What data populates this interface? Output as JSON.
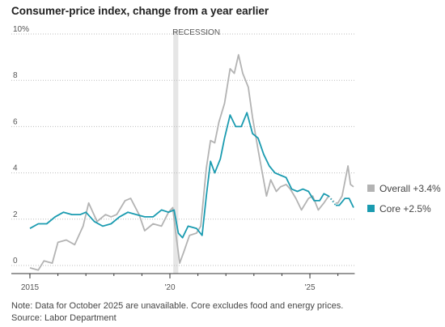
{
  "chart_data": {
    "type": "line",
    "title": "Consumer-price index, change from a year earlier",
    "xlim": [
      2014.9,
      2026.6
    ],
    "xticks": [
      {
        "value": 2015,
        "label": "2015"
      },
      {
        "value": 2020,
        "label": "'20"
      },
      {
        "value": 2025,
        "label": "'25"
      }
    ],
    "ylim": [
      -0.35,
      10
    ],
    "yticks": [
      0,
      2,
      4,
      6,
      8,
      {
        "value": 10,
        "label": "10%"
      }
    ],
    "grid": true,
    "shaded_region": {
      "label": "RECESSION",
      "xlim": [
        2020.12,
        2020.3
      ]
    },
    "series": [
      {
        "name": "Overall +3.4%",
        "color": "#b3b3b3",
        "x": [
          2015.0,
          2015.3,
          2015.5,
          2015.8,
          2016.0,
          2016.3,
          2016.6,
          2016.9,
          2017.1,
          2017.4,
          2017.7,
          2017.9,
          2018.1,
          2018.4,
          2018.6,
          2018.9,
          2019.1,
          2019.4,
          2019.7,
          2019.95,
          2020.1,
          2020.2,
          2020.35,
          2020.5,
          2020.7,
          2020.95,
          2021.1,
          2021.3,
          2021.45,
          2021.6,
          2021.75,
          2021.95,
          2022.15,
          2022.3,
          2022.45,
          2022.6,
          2022.8,
          2022.95,
          2023.15,
          2023.3,
          2023.45,
          2023.6,
          2023.8,
          2023.95,
          2024.15,
          2024.3,
          2024.5,
          2024.7,
          2024.95,
          2025.1,
          2025.3,
          2025.5,
          2025.67,
          2025.75,
          2025.92,
          2026.0,
          2026.15,
          2026.36,
          2026.45,
          2026.56
        ],
        "values": [
          -0.1,
          -0.2,
          0.2,
          0.1,
          1.0,
          1.1,
          0.9,
          1.7,
          2.7,
          1.9,
          2.2,
          2.1,
          2.2,
          2.8,
          2.9,
          2.2,
          1.5,
          1.8,
          1.7,
          2.3,
          2.5,
          1.5,
          0.1,
          0.6,
          1.3,
          1.4,
          1.7,
          4.2,
          5.4,
          5.3,
          6.2,
          7.0,
          8.5,
          8.3,
          9.1,
          8.3,
          7.7,
          6.4,
          5.0,
          4.0,
          3.0,
          3.7,
          3.2,
          3.4,
          3.5,
          3.3,
          2.9,
          2.4,
          2.9,
          3.0,
          2.4,
          2.7,
          3.0,
          null,
          2.7,
          2.7,
          3.0,
          4.3,
          3.5,
          3.4
        ]
      },
      {
        "name": "Core +2.5%",
        "color": "#1a9bb0",
        "x": [
          2015.0,
          2015.3,
          2015.6,
          2015.9,
          2016.2,
          2016.5,
          2016.8,
          2017.0,
          2017.3,
          2017.6,
          2017.9,
          2018.2,
          2018.5,
          2018.8,
          2019.1,
          2019.4,
          2019.7,
          2019.95,
          2020.15,
          2020.3,
          2020.45,
          2020.65,
          2020.95,
          2021.15,
          2021.3,
          2021.45,
          2021.6,
          2021.8,
          2021.95,
          2022.15,
          2022.35,
          2022.55,
          2022.75,
          2022.95,
          2023.15,
          2023.35,
          2023.55,
          2023.75,
          2023.95,
          2024.15,
          2024.35,
          2024.55,
          2024.75,
          2024.95,
          2025.15,
          2025.35,
          2025.5,
          2025.67,
          2025.75,
          2025.92,
          2026.05,
          2026.25,
          2026.4,
          2026.56
        ],
        "values": [
          1.6,
          1.8,
          1.8,
          2.1,
          2.3,
          2.2,
          2.2,
          2.3,
          1.9,
          1.7,
          1.8,
          2.1,
          2.3,
          2.2,
          2.1,
          2.1,
          2.4,
          2.3,
          2.4,
          1.4,
          1.2,
          1.7,
          1.6,
          1.3,
          3.0,
          4.5,
          4.0,
          4.6,
          5.5,
          6.5,
          6.0,
          6.0,
          6.6,
          5.7,
          5.5,
          4.8,
          4.3,
          4.0,
          3.9,
          3.8,
          3.3,
          3.2,
          3.3,
          3.2,
          2.8,
          2.8,
          3.1,
          3.0,
          null,
          2.6,
          2.6,
          2.9,
          2.9,
          2.5
        ]
      }
    ],
    "note": "Note: Data for October 2025 are unavailable. Core excludes food and energy prices.",
    "source": "Source: Labor Department"
  }
}
